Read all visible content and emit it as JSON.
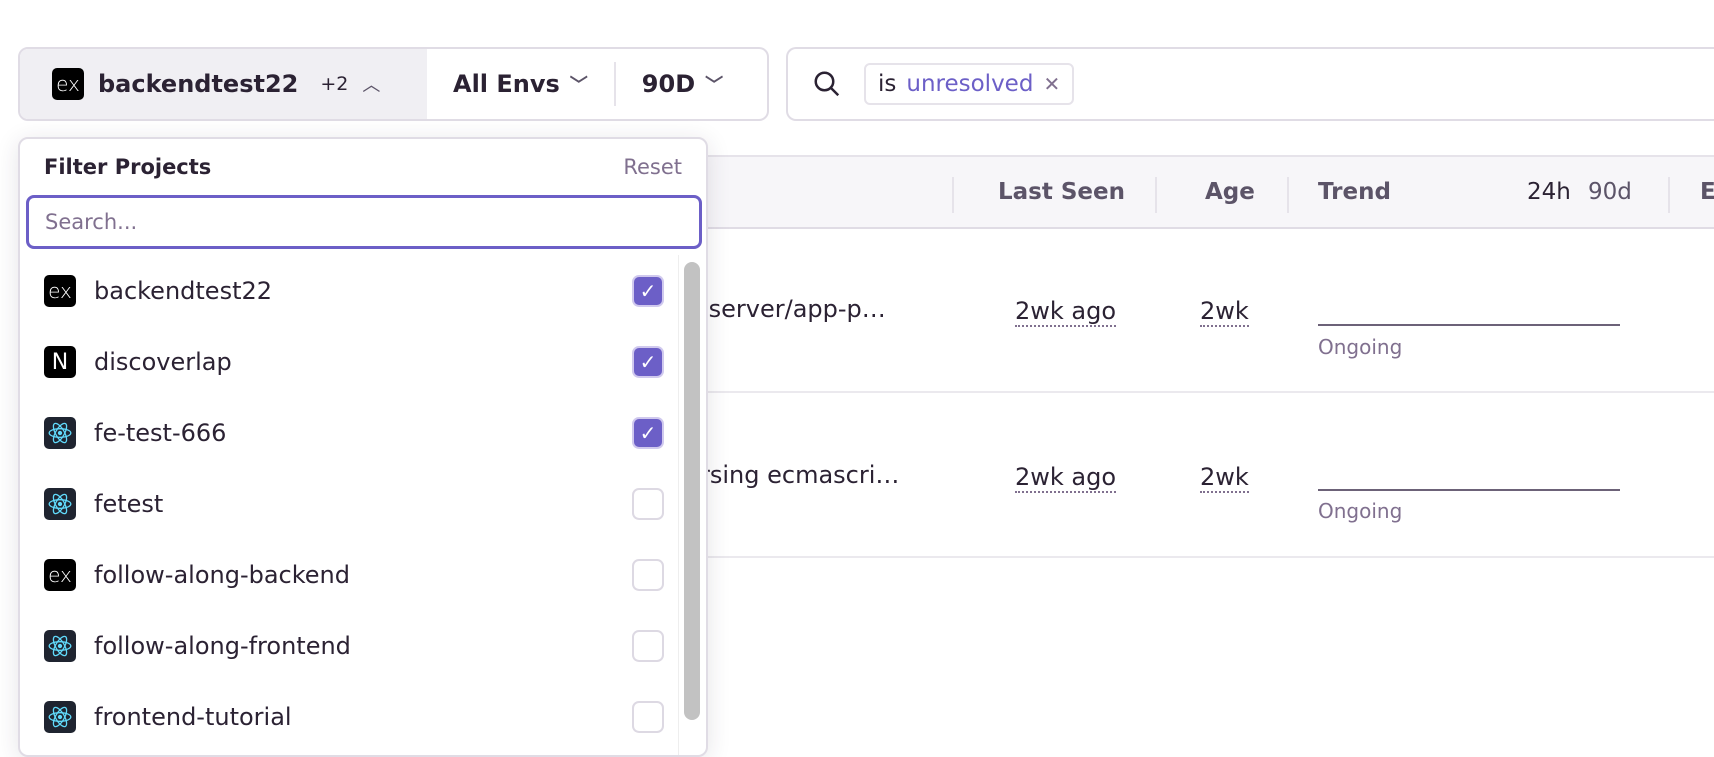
{
  "filters": {
    "project": "backendtest22",
    "project_extra": "+2",
    "env": "All Envs",
    "period": "90D"
  },
  "search": {
    "token_key": "is",
    "token_value": "unresolved"
  },
  "table": {
    "headers": {
      "last_seen": "Last Seen",
      "age": "Age",
      "trend": "Trend",
      "t24": "24h",
      "t90": "90d",
      "e": "E"
    },
    "rows": [
      {
        "title": "-server/app-p…",
        "last_seen": "2wk ago",
        "age": "2wk",
        "status": "Ongoing"
      },
      {
        "title": "rsing ecmascri…",
        "last_seen": "2wk ago",
        "age": "2wk",
        "status": "Ongoing"
      }
    ]
  },
  "dropdown": {
    "title": "Filter Projects",
    "reset": "Reset",
    "placeholder": "Search...",
    "items": [
      {
        "name": "backendtest22",
        "icon": "express",
        "checked": true
      },
      {
        "name": "discoverlap",
        "icon": "nextjs",
        "checked": true
      },
      {
        "name": "fe-test-666",
        "icon": "react",
        "checked": true
      },
      {
        "name": "fetest",
        "icon": "react",
        "checked": false
      },
      {
        "name": "follow-along-backend",
        "icon": "express",
        "checked": false
      },
      {
        "name": "follow-along-frontend",
        "icon": "react",
        "checked": false
      },
      {
        "name": "frontend-tutorial",
        "icon": "react",
        "checked": false
      }
    ]
  },
  "colors": {
    "accent": "#6c5fc7"
  }
}
